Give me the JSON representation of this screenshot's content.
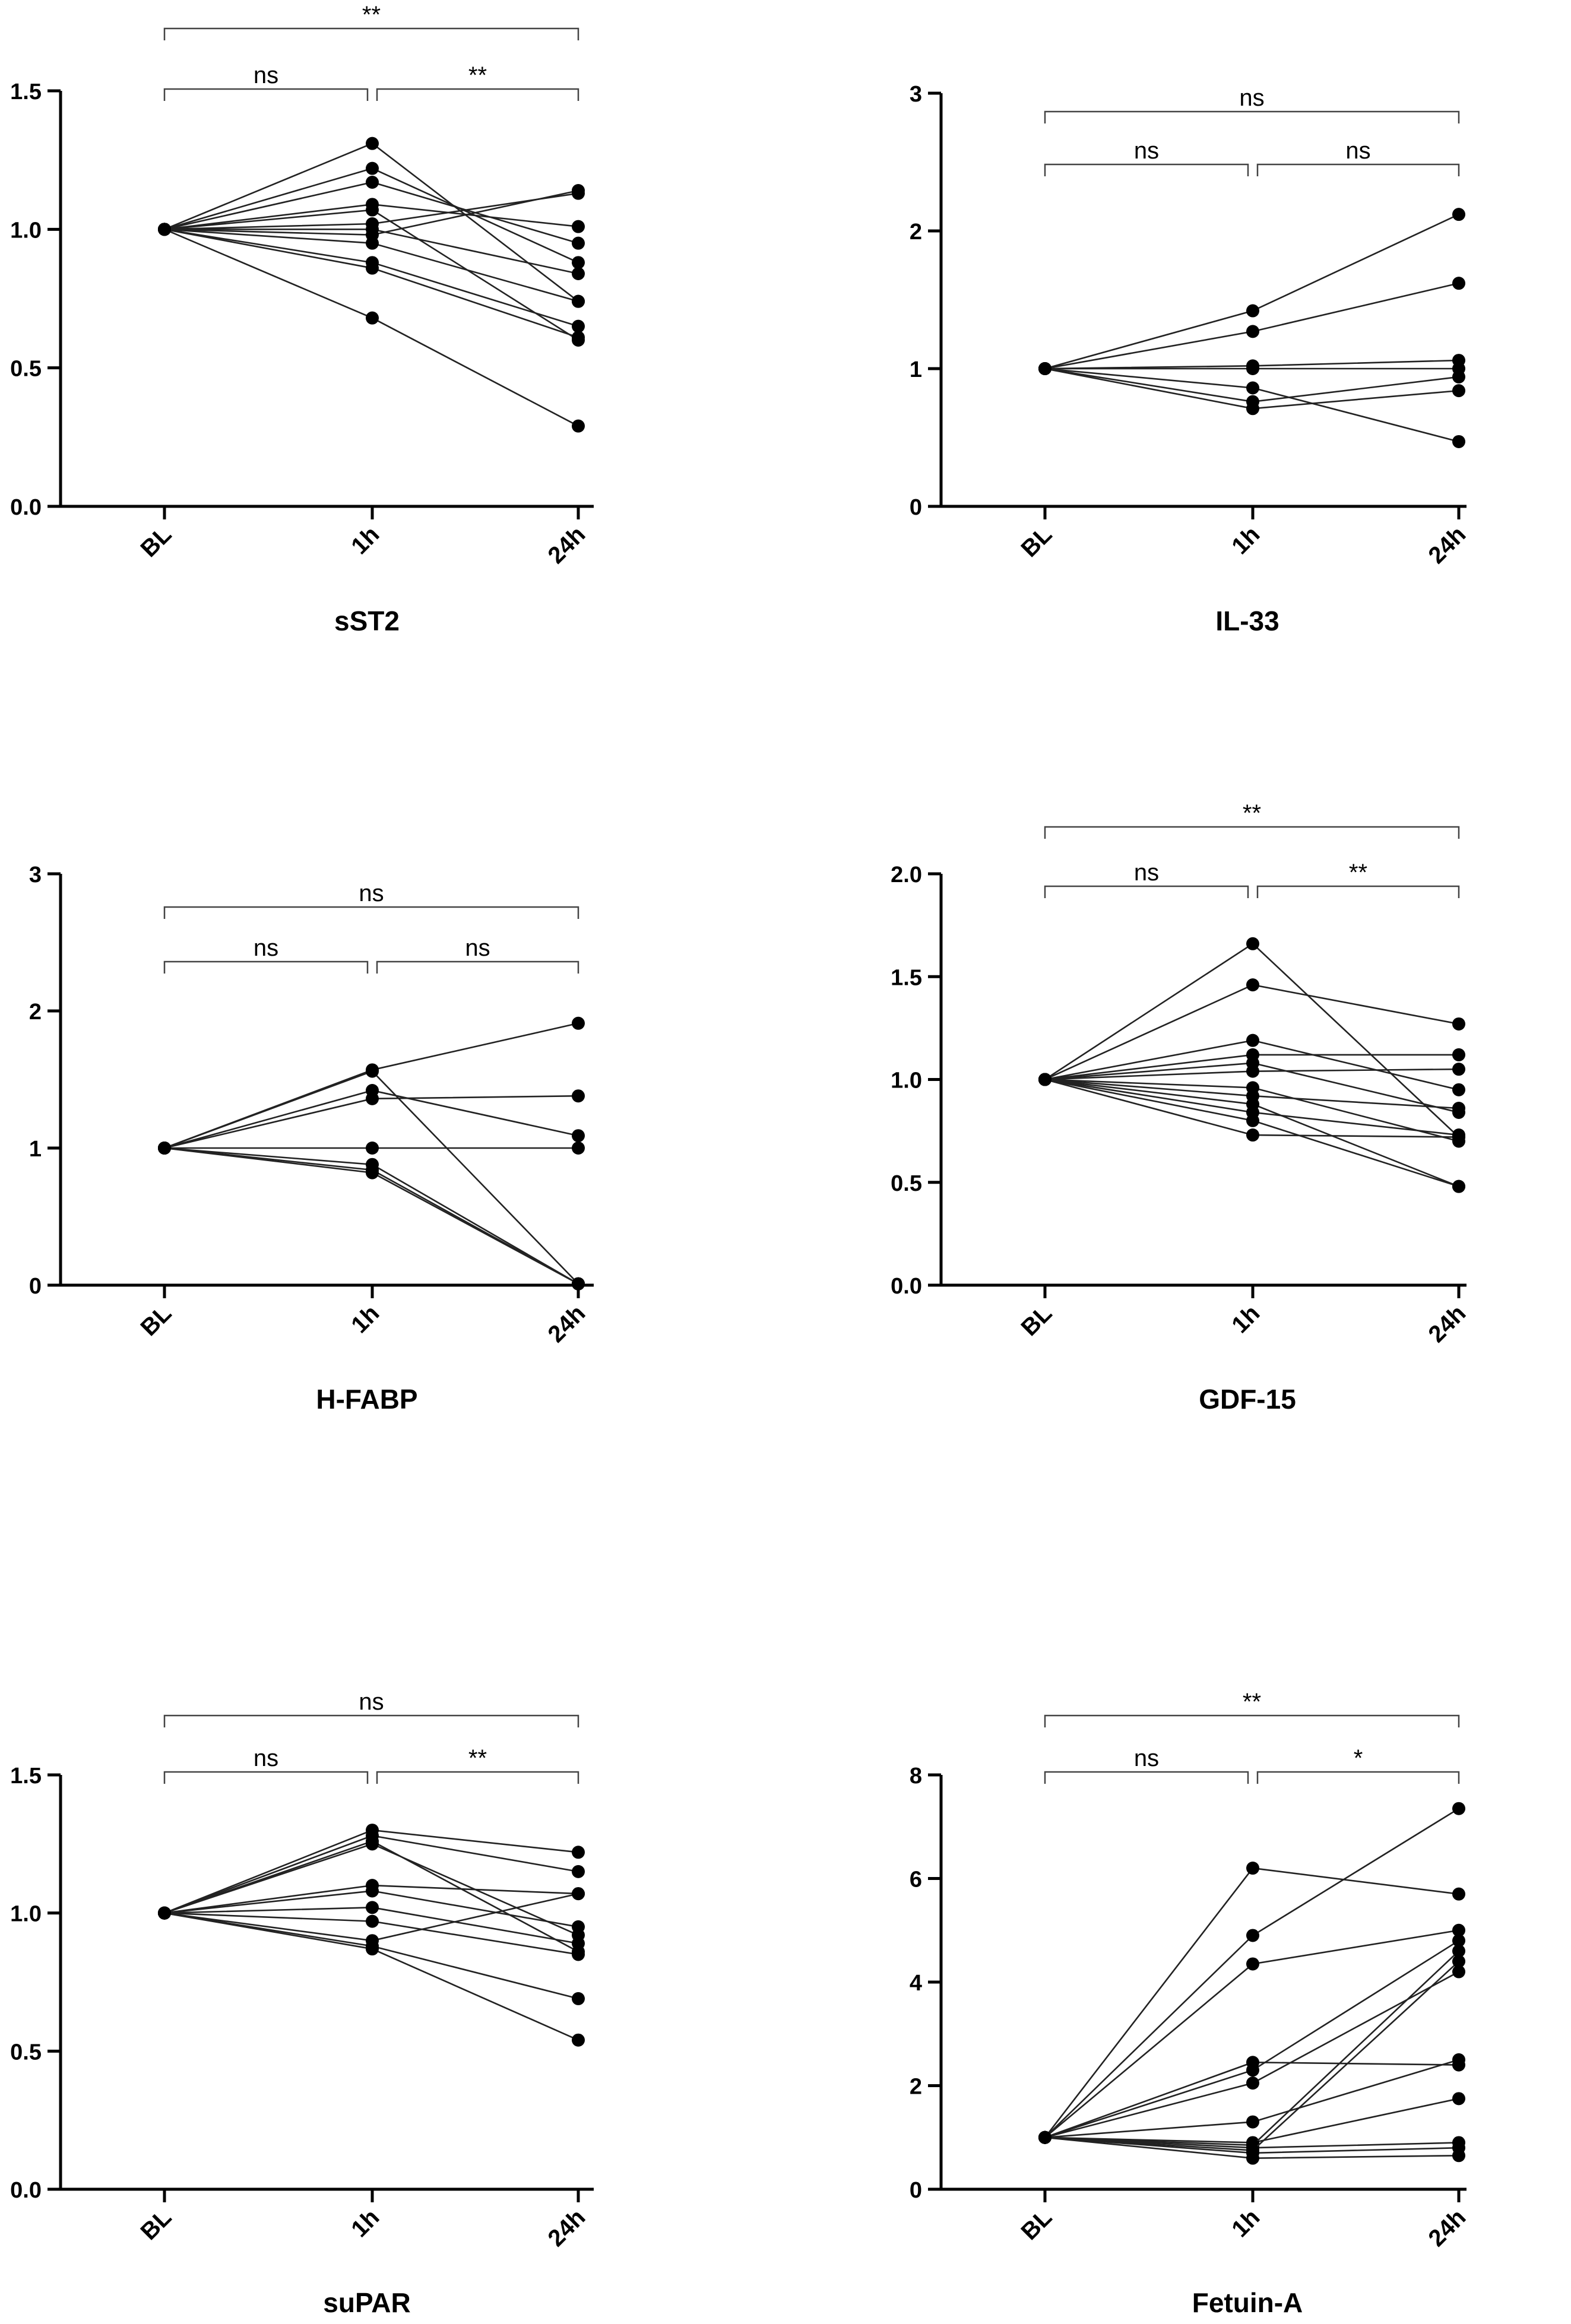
{
  "chart_data": [
    {
      "type": "line",
      "title": "sST2",
      "categories": [
        "BL",
        "1h",
        "24h"
      ],
      "ylim": [
        0,
        1.5
      ],
      "yticks": [
        0.0,
        0.5,
        1.0,
        1.5
      ],
      "ytick_labels": [
        "0.0",
        "0.5",
        "1.0",
        "1.5"
      ],
      "comparisons": [
        {
          "from": 0,
          "to": 1,
          "label": "ns",
          "level": 1
        },
        {
          "from": 1,
          "to": 2,
          "label": "**",
          "level": 1
        },
        {
          "from": 0,
          "to": 2,
          "label": "**",
          "level": 2
        }
      ],
      "series": [
        {
          "values": [
            1,
            1.31,
            0.74
          ]
        },
        {
          "values": [
            1,
            1.22,
            0.88
          ]
        },
        {
          "values": [
            1,
            1.17,
            0.95
          ]
        },
        {
          "values": [
            1,
            1.09,
            1.01
          ]
        },
        {
          "values": [
            1,
            1.07,
            0.6
          ]
        },
        {
          "values": [
            1,
            1.02,
            1.13
          ]
        },
        {
          "values": [
            1,
            1.0,
            0.84
          ]
        },
        {
          "values": [
            1,
            0.98,
            1.14
          ]
        },
        {
          "values": [
            1,
            0.95,
            0.74
          ]
        },
        {
          "values": [
            1,
            0.88,
            0.65
          ]
        },
        {
          "values": [
            1,
            0.86,
            0.61
          ]
        },
        {
          "values": [
            1,
            0.68,
            0.29
          ]
        }
      ]
    },
    {
      "type": "line",
      "title": "IL-33",
      "categories": [
        "BL",
        "1h",
        "24h"
      ],
      "ylim": [
        0,
        3
      ],
      "yticks": [
        0,
        1,
        2,
        3
      ],
      "ytick_labels": [
        "0",
        "1",
        "2",
        "3"
      ],
      "comparisons": [
        {
          "from": 0,
          "to": 1,
          "label": "ns",
          "level": 1
        },
        {
          "from": 1,
          "to": 2,
          "label": "ns",
          "level": 1
        },
        {
          "from": 0,
          "to": 2,
          "label": "ns",
          "level": 2
        }
      ],
      "series": [
        {
          "values": [
            1,
            1.42,
            2.12
          ]
        },
        {
          "values": [
            1,
            1.27,
            1.62
          ]
        },
        {
          "values": [
            1,
            1.02,
            1.06
          ]
        },
        {
          "values": [
            1,
            1.0,
            1.0
          ]
        },
        {
          "values": [
            1,
            0.86,
            0.47
          ]
        },
        {
          "values": [
            1,
            0.76,
            0.94
          ]
        },
        {
          "values": [
            1,
            0.71,
            0.84
          ]
        }
      ]
    },
    {
      "type": "line",
      "title": "H-FABP",
      "categories": [
        "BL",
        "1h",
        "24h"
      ],
      "ylim": [
        0,
        3
      ],
      "yticks": [
        0,
        1,
        2,
        3
      ],
      "ytick_labels": [
        "0",
        "1",
        "2",
        "3"
      ],
      "comparisons": [
        {
          "from": 0,
          "to": 1,
          "label": "ns",
          "level": 1
        },
        {
          "from": 1,
          "to": 2,
          "label": "ns",
          "level": 1
        },
        {
          "from": 0,
          "to": 2,
          "label": "ns",
          "level": 2
        }
      ],
      "series": [
        {
          "values": [
            1,
            1.57,
            1.91
          ]
        },
        {
          "values": [
            1,
            1.56,
            0.01
          ]
        },
        {
          "values": [
            1,
            1.42,
            1.09
          ]
        },
        {
          "values": [
            1,
            1.36,
            1.38
          ]
        },
        {
          "values": [
            1,
            1.0,
            1.0
          ]
        },
        {
          "values": [
            1,
            0.88,
            0.01
          ]
        },
        {
          "values": [
            1,
            0.84,
            0.01
          ]
        },
        {
          "values": [
            1,
            0.82,
            0.01
          ]
        }
      ]
    },
    {
      "type": "line",
      "title": "GDF-15",
      "categories": [
        "BL",
        "1h",
        "24h"
      ],
      "ylim": [
        0,
        2.0
      ],
      "yticks": [
        0.0,
        0.5,
        1.0,
        1.5,
        2.0
      ],
      "ytick_labels": [
        "0.0",
        "0.5",
        "1.0",
        "1.5",
        "2.0"
      ],
      "comparisons": [
        {
          "from": 0,
          "to": 1,
          "label": "ns",
          "level": 1
        },
        {
          "from": 1,
          "to": 2,
          "label": "**",
          "level": 1
        },
        {
          "from": 0,
          "to": 2,
          "label": "**",
          "level": 2
        }
      ],
      "series": [
        {
          "values": [
            1,
            1.66,
            0.72
          ]
        },
        {
          "values": [
            1,
            1.46,
            1.27
          ]
        },
        {
          "values": [
            1,
            1.19,
            0.95
          ]
        },
        {
          "values": [
            1,
            1.12,
            1.12
          ]
        },
        {
          "values": [
            1,
            1.08,
            0.84
          ]
        },
        {
          "values": [
            1,
            1.04,
            1.05
          ]
        },
        {
          "values": [
            1,
            0.96,
            0.7
          ]
        },
        {
          "values": [
            1,
            0.92,
            0.86
          ]
        },
        {
          "values": [
            1,
            0.88,
            0.48
          ]
        },
        {
          "values": [
            1,
            0.84,
            0.73
          ]
        },
        {
          "values": [
            1,
            0.8,
            0.48
          ]
        },
        {
          "values": [
            1,
            0.73,
            0.72
          ]
        }
      ]
    },
    {
      "type": "line",
      "title": "suPAR",
      "categories": [
        "BL",
        "1h",
        "24h"
      ],
      "ylim": [
        0,
        1.5
      ],
      "yticks": [
        0.0,
        0.5,
        1.0,
        1.5
      ],
      "ytick_labels": [
        "0.0",
        "0.5",
        "1.0",
        "1.5"
      ],
      "comparisons": [
        {
          "from": 0,
          "to": 1,
          "label": "ns",
          "level": 1
        },
        {
          "from": 1,
          "to": 2,
          "label": "**",
          "level": 1
        },
        {
          "from": 0,
          "to": 2,
          "label": "ns",
          "level": 2
        }
      ],
      "series": [
        {
          "values": [
            1,
            1.3,
            1.22
          ]
        },
        {
          "values": [
            1,
            1.28,
            1.15
          ]
        },
        {
          "values": [
            1,
            1.26,
            0.86
          ]
        },
        {
          "values": [
            1,
            1.25,
            0.92
          ]
        },
        {
          "values": [
            1,
            1.1,
            1.07
          ]
        },
        {
          "values": [
            1,
            1.08,
            0.95
          ]
        },
        {
          "values": [
            1,
            1.02,
            0.89
          ]
        },
        {
          "values": [
            1,
            0.97,
            0.85
          ]
        },
        {
          "values": [
            1,
            0.9,
            1.07
          ]
        },
        {
          "values": [
            1,
            0.88,
            0.69
          ]
        },
        {
          "values": [
            1,
            0.87,
            0.54
          ]
        }
      ]
    },
    {
      "type": "line",
      "title": "Fetuin-A",
      "categories": [
        "BL",
        "1h",
        "24h"
      ],
      "ylim": [
        0,
        8
      ],
      "yticks": [
        0,
        2,
        4,
        6,
        8
      ],
      "ytick_labels": [
        "0",
        "2",
        "4",
        "6",
        "8"
      ],
      "comparisons": [
        {
          "from": 0,
          "to": 1,
          "label": "ns",
          "level": 1
        },
        {
          "from": 1,
          "to": 2,
          "label": "*",
          "level": 1
        },
        {
          "from": 0,
          "to": 2,
          "label": "**",
          "level": 2
        }
      ],
      "series": [
        {
          "values": [
            1,
            6.2,
            5.7
          ]
        },
        {
          "values": [
            1,
            4.9,
            7.35
          ]
        },
        {
          "values": [
            1,
            4.35,
            5.0
          ]
        },
        {
          "values": [
            1,
            2.45,
            2.4
          ]
        },
        {
          "values": [
            1,
            2.3,
            4.8
          ]
        },
        {
          "values": [
            1,
            2.05,
            4.2
          ]
        },
        {
          "values": [
            1,
            1.3,
            2.5
          ]
        },
        {
          "values": [
            1,
            0.9,
            1.75
          ]
        },
        {
          "values": [
            1,
            0.85,
            4.6
          ]
        },
        {
          "values": [
            1,
            0.8,
            0.9
          ]
        },
        {
          "values": [
            1,
            0.75,
            4.4
          ]
        },
        {
          "values": [
            1,
            0.7,
            0.8
          ]
        },
        {
          "values": [
            1,
            0.6,
            0.65
          ]
        }
      ]
    }
  ]
}
